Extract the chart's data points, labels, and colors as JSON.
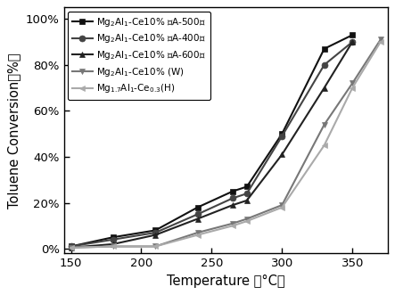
{
  "title": "",
  "xlabel": "Temperature （°C）",
  "ylabel": "Toluene Conversion（%）",
  "xlim": [
    145,
    375
  ],
  "ylim": [
    -0.02,
    1.05
  ],
  "xticks": [
    150,
    200,
    250,
    300,
    350
  ],
  "yticks": [
    0.0,
    0.2,
    0.4,
    0.6,
    0.8,
    1.0
  ],
  "ytick_labels": [
    "0%",
    "20%",
    "40%",
    "60%",
    "80%",
    "100%"
  ],
  "series": [
    {
      "label": "Mg$_2$Al$_1$-Ce10% （A-500）",
      "color": "#111111",
      "marker": "s",
      "markersize": 5,
      "linewidth": 1.5,
      "x": [
        150,
        180,
        210,
        240,
        265,
        275,
        300,
        330,
        350
      ],
      "y": [
        0.01,
        0.05,
        0.08,
        0.18,
        0.25,
        0.27,
        0.5,
        0.87,
        0.93
      ]
    },
    {
      "label": "Mg$_2$Al$_1$-Ce10% （A-400）",
      "color": "#444444",
      "marker": "o",
      "markersize": 5,
      "linewidth": 1.5,
      "x": [
        150,
        180,
        210,
        240,
        265,
        275,
        300,
        330,
        350
      ],
      "y": [
        0.01,
        0.04,
        0.07,
        0.15,
        0.22,
        0.24,
        0.49,
        0.8,
        0.9
      ]
    },
    {
      "label": "Mg$_2$Al$_1$-Ce10% （A-600）",
      "color": "#222222",
      "marker": "^",
      "markersize": 5,
      "linewidth": 1.5,
      "x": [
        150,
        180,
        210,
        240,
        265,
        275,
        300,
        330,
        350
      ],
      "y": [
        0.005,
        0.02,
        0.06,
        0.13,
        0.19,
        0.21,
        0.41,
        0.7,
        0.9
      ]
    },
    {
      "label": "Mg$_2$Al$_1$-Ce10% (W)",
      "color": "#777777",
      "marker": "v",
      "markersize": 5,
      "linewidth": 1.5,
      "x": [
        150,
        180,
        210,
        240,
        265,
        275,
        300,
        330,
        350,
        370
      ],
      "y": [
        0.005,
        0.01,
        0.01,
        0.07,
        0.11,
        0.13,
        0.19,
        0.54,
        0.72,
        0.91
      ]
    },
    {
      "label": "Mg$_{1.7}$Al$_1$-Ce$_{0.3}$(H)",
      "color": "#aaaaaa",
      "marker": "<",
      "markersize": 5,
      "linewidth": 1.5,
      "x": [
        150,
        180,
        210,
        240,
        265,
        275,
        300,
        330,
        350,
        370
      ],
      "y": [
        0.005,
        0.01,
        0.01,
        0.06,
        0.1,
        0.12,
        0.18,
        0.45,
        0.7,
        0.9
      ]
    }
  ],
  "background_color": "#ffffff",
  "legend_fontsize": 7.5,
  "axis_fontsize": 10.5,
  "tick_fontsize": 9.5
}
